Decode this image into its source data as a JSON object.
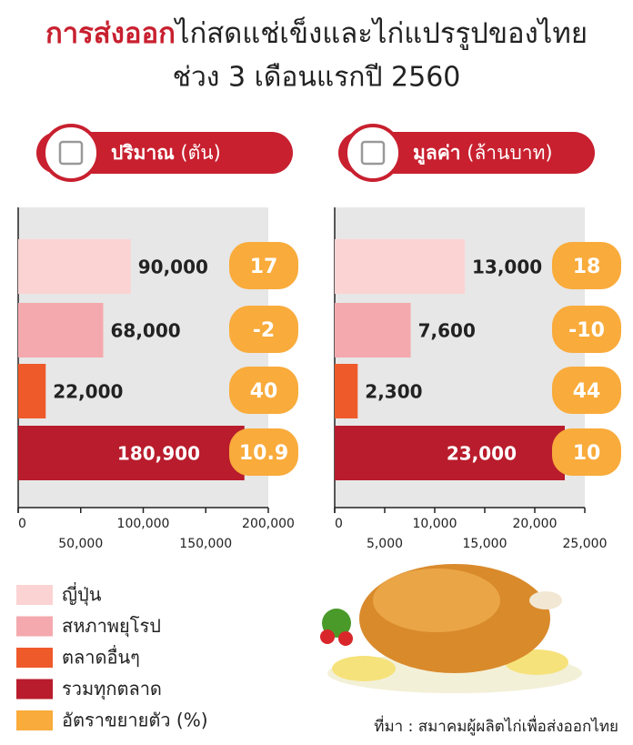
{
  "header": {
    "title_highlight": "การส่งออก",
    "title_rest": "ไก่สดแช่เข็งและไก่แปรรูปของไทย",
    "subtitle": "ช่วง 3 เดือนแรกปี 2560"
  },
  "legend": {
    "items": [
      {
        "name": "ญี่ปุ่น",
        "color": "#fbd3d3"
      },
      {
        "name": "สหภาพยุโรป",
        "color": "#f4a9ae"
      },
      {
        "name": "ตลาดอื่นๆ",
        "color": "#ef5a2b"
      },
      {
        "name": "รวมทุกตลาด",
        "color": "#b91c2c"
      },
      {
        "name": "อัตราขยายตัว (%)",
        "color": "#f9ab3b"
      }
    ]
  },
  "chart_data": [
    {
      "type": "bar",
      "orientation": "horizontal",
      "title": "ปริมาณ",
      "unit": "(ตัน)",
      "values": [
        90000,
        68000,
        22000,
        180900
      ],
      "value_labels": [
        "90,000",
        "68,000",
        "22,000",
        "180,900"
      ],
      "growth": [
        17,
        -2,
        40,
        10.9
      ],
      "xlim": [
        0,
        200000
      ],
      "xticks": [
        0,
        {
          "value": 50000,
          "label": "50,000"
        },
        {
          "value": 100000,
          "label": "100,000"
        },
        {
          "value": 150000,
          "label": "150,000"
        },
        {
          "value": 200000,
          "label": "200,000"
        }
      ]
    },
    {
      "type": "bar",
      "orientation": "horizontal",
      "title": "มูลค่า",
      "unit": "(ล้านบาท)",
      "values": [
        13000,
        7600,
        2300,
        23000
      ],
      "value_labels": [
        "13,000",
        "7,600",
        "2,300",
        "23,000"
      ],
      "growth": [
        18,
        -10,
        44,
        10
      ],
      "xlim": [
        0,
        25000
      ],
      "xticks": [
        0,
        {
          "value": 5000,
          "label": "5,000"
        },
        {
          "value": 10000,
          "label": "10,000"
        },
        {
          "value": 15000,
          "label": "15,000"
        },
        {
          "value": 20000,
          "label": "20,000"
        },
        {
          "value": 25000,
          "label": "25,000"
        }
      ]
    }
  ],
  "source": "ที่มา : สมาคมผู้ผลิตไก่เพื่อส่งออกไทย"
}
